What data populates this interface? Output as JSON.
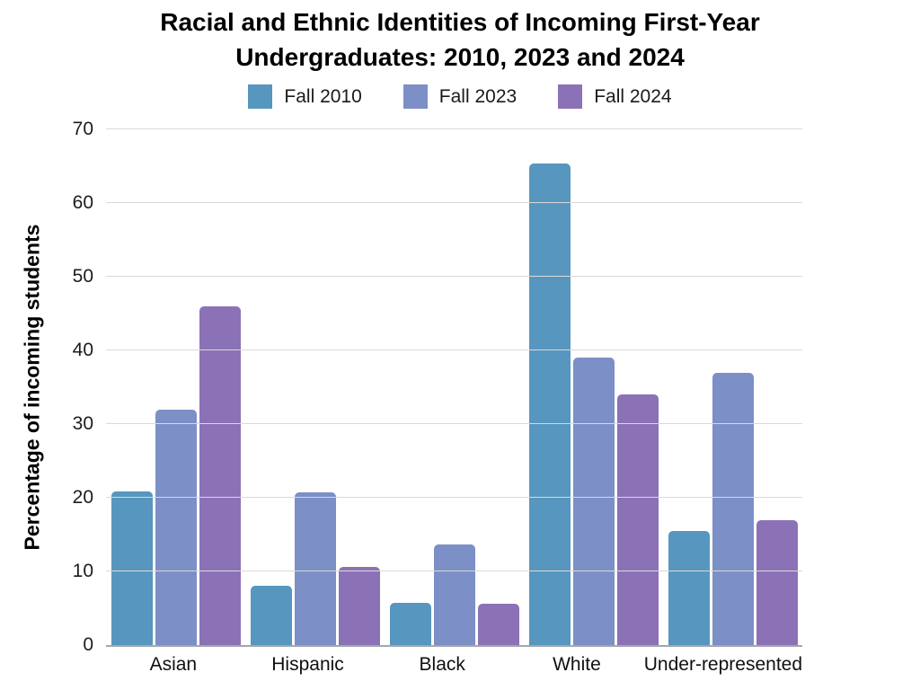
{
  "chart_data": {
    "type": "bar",
    "title": "Racial and Ethnic Identities of Incoming First-Year Undergraduates: 2010, 2023 and 2024",
    "ylabel": "Percentage of incoming students",
    "xlabel": "",
    "ylim": [
      0,
      70
    ],
    "yticks": [
      0,
      10,
      20,
      30,
      40,
      50,
      60,
      70
    ],
    "grid": true,
    "legend_position": "top-center",
    "categories": [
      "Asian",
      "Hispanic",
      "Black",
      "White",
      "Under-represented"
    ],
    "series": [
      {
        "name": "Fall 2010",
        "color": "#5796BE",
        "values": [
          20.8,
          8,
          5.7,
          65.4,
          15.5
        ]
      },
      {
        "name": "Fall 2023",
        "color": "#7C8FC6",
        "values": [
          32,
          20.7,
          13.7,
          39,
          37
        ]
      },
      {
        "name": "Fall 2024",
        "color": "#8B72B7",
        "values": [
          46,
          10.6,
          5.6,
          34,
          17
        ]
      }
    ],
    "colors": {
      "gridline": "#d9d9d9",
      "axis_line": "#a3a7ad",
      "text": "#000000"
    }
  }
}
